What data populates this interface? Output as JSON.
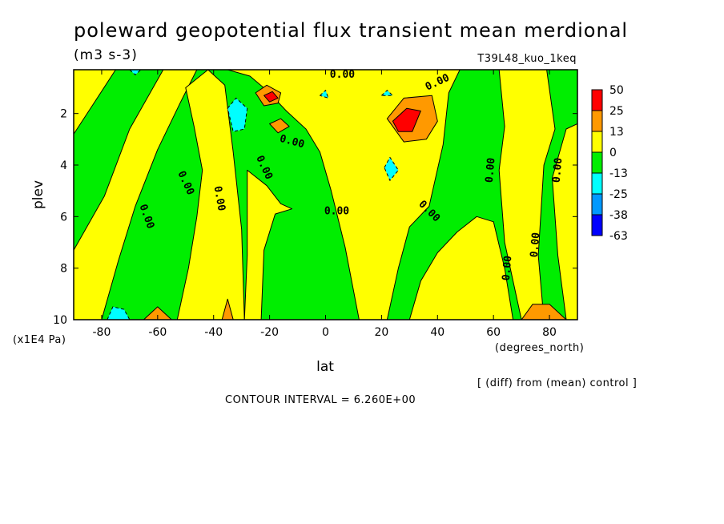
{
  "chart_data": {
    "type": "heatmap",
    "title": "poleward geopotential flux transient mean merdional",
    "units": "(m3 s-3)",
    "run_label": "T39L48_kuo_1keq",
    "xlabel": "lat",
    "ylabel": "plev",
    "x_units": "(degrees_north)",
    "y_units": "(x1E4 Pa)",
    "xlim": [
      -90,
      90
    ],
    "ylim": [
      10,
      0.3
    ],
    "x_ticks": [
      {
        "value": -80,
        "label": "-80"
      },
      {
        "value": -60,
        "label": "-60"
      },
      {
        "value": -40,
        "label": "-40"
      },
      {
        "value": -20,
        "label": "-20"
      },
      {
        "value": 0,
        "label": "0"
      },
      {
        "value": 20,
        "label": "20"
      },
      {
        "value": 40,
        "label": "40"
      },
      {
        "value": 60,
        "label": "60"
      },
      {
        "value": 80,
        "label": "80"
      }
    ],
    "y_ticks": [
      {
        "value": 2,
        "label": "2"
      },
      {
        "value": 4,
        "label": "4"
      },
      {
        "value": 6,
        "label": "6"
      },
      {
        "value": 8,
        "label": "8"
      },
      {
        "value": 10,
        "label": "10"
      }
    ],
    "contour_interval_text": "CONTOUR INTERVAL = 6.260E+00",
    "diff_note": "[ (diff) from (mean) control ]",
    "zero_label": "0.00",
    "colorbar": {
      "labels": [
        "50",
        "25",
        "13",
        "0",
        "-13",
        "-25",
        "-38",
        "-63"
      ],
      "colors": [
        "#ff0000",
        "#ff9900",
        "#ffff00",
        "#00ee00",
        "#00ffff",
        "#0099ff",
        "#0000ff"
      ]
    },
    "regions": [
      {
        "level": "positive",
        "points": [
          [
            -80,
            10
          ],
          [
            -74,
            7.7
          ],
          [
            -68,
            5.6
          ],
          [
            -60,
            3.4
          ],
          [
            -52,
            1.6
          ],
          [
            -46,
            0.3
          ],
          [
            -58,
            0.3
          ],
          [
            -70,
            2.6
          ],
          [
            -79,
            5.2
          ],
          [
            -90,
            7.3
          ],
          [
            -90,
            10
          ]
        ]
      },
      {
        "level": "positive",
        "points": [
          [
            -53,
            10
          ],
          [
            -49,
            8
          ],
          [
            -46,
            6
          ],
          [
            -44,
            4.2
          ],
          [
            -47,
            2.5
          ],
          [
            -50,
            1
          ],
          [
            -42,
            0.3
          ],
          [
            -36,
            0.9
          ],
          [
            -33,
            3.5
          ],
          [
            -30,
            6.5
          ],
          [
            -29,
            10
          ]
        ]
      },
      {
        "level": "positive",
        "points": [
          [
            -90,
            0.3
          ],
          [
            -75,
            0.3
          ],
          [
            -81,
            1.3
          ],
          [
            -90,
            2.8
          ]
        ]
      },
      {
        "level": "positive",
        "points": [
          [
            -35,
            0.3
          ],
          [
            -27,
            0.55
          ],
          [
            -21,
            1.1
          ],
          [
            -14,
            1.9
          ],
          [
            -7,
            2.6
          ],
          [
            -2,
            3.5
          ],
          [
            2,
            5
          ],
          [
            7,
            7.2
          ],
          [
            12,
            10
          ],
          [
            22,
            10
          ],
          [
            26,
            8
          ],
          [
            30,
            6.4
          ],
          [
            37,
            5.6
          ],
          [
            42,
            3.2
          ],
          [
            44,
            1.2
          ],
          [
            48,
            0.3
          ]
        ]
      },
      {
        "level": "positive",
        "points": [
          [
            -28,
            4.2
          ],
          [
            -21,
            4.8
          ],
          [
            -16,
            5.5
          ],
          [
            -12,
            5.7
          ],
          [
            -18,
            5.9
          ],
          [
            -22,
            7.3
          ],
          [
            -23,
            10
          ],
          [
            -29,
            10
          ],
          [
            -28,
            7.5
          ]
        ]
      },
      {
        "level": "positive",
        "points": [
          [
            30,
            10
          ],
          [
            34,
            8.5
          ],
          [
            40,
            7.4
          ],
          [
            47,
            6.6
          ],
          [
            54,
            6
          ],
          [
            60,
            6.2
          ],
          [
            64,
            8
          ],
          [
            67,
            10
          ]
        ]
      },
      {
        "level": "positive",
        "points": [
          [
            62,
            0.3
          ],
          [
            64,
            2.5
          ],
          [
            62,
            4.2
          ],
          [
            64,
            7
          ],
          [
            70,
            10
          ],
          [
            78,
            10
          ],
          [
            76,
            7.5
          ],
          [
            78,
            4
          ],
          [
            82,
            2.6
          ],
          [
            79,
            0.3
          ]
        ]
      },
      {
        "level": "positive",
        "points": [
          [
            81,
            4.5
          ],
          [
            86,
            2.6
          ],
          [
            90,
            2.4
          ],
          [
            90,
            10
          ],
          [
            86,
            10
          ],
          [
            83,
            7.5
          ]
        ]
      },
      {
        "level": "lev1",
        "points": [
          [
            -25,
            1.2
          ],
          [
            -21,
            0.9
          ],
          [
            -16,
            1.2
          ],
          [
            -17,
            1.6
          ],
          [
            -22,
            1.7
          ]
        ]
      },
      {
        "level": "lev2",
        "points": [
          [
            -22,
            1.3
          ],
          [
            -19,
            1.15
          ],
          [
            -17,
            1.4
          ],
          [
            -20,
            1.55
          ]
        ]
      },
      {
        "level": "lev1",
        "points": [
          [
            -20,
            2.4
          ],
          [
            -16,
            2.2
          ],
          [
            -13,
            2.5
          ],
          [
            -17,
            2.75
          ]
        ]
      },
      {
        "level": "lev1",
        "points": [
          [
            22,
            2.2
          ],
          [
            28,
            1.4
          ],
          [
            38,
            1.3
          ],
          [
            40,
            2.3
          ],
          [
            36,
            3
          ],
          [
            28,
            3.1
          ]
        ]
      },
      {
        "level": "lev2",
        "points": [
          [
            24,
            2.3
          ],
          [
            29,
            1.8
          ],
          [
            34,
            1.9
          ],
          [
            31,
            2.7
          ],
          [
            26,
            2.7
          ]
        ]
      },
      {
        "level": "lev1",
        "points": [
          [
            -37,
            10
          ],
          [
            -35,
            9.2
          ],
          [
            -33,
            10
          ]
        ]
      },
      {
        "level": "lev1",
        "points": [
          [
            -65,
            10
          ],
          [
            -60,
            9.5
          ],
          [
            -55,
            10
          ]
        ]
      },
      {
        "level": "lev1",
        "points": [
          [
            70,
            10
          ],
          [
            74,
            9.4
          ],
          [
            80,
            9.4
          ],
          [
            86,
            10
          ]
        ]
      },
      {
        "level": "neg1",
        "points": [
          [
            -35,
            1.8
          ],
          [
            -32,
            1.4
          ],
          [
            -28,
            1.8
          ],
          [
            -29,
            2.6
          ],
          [
            -33,
            2.7
          ]
        ]
      },
      {
        "level": "neg1",
        "points": [
          [
            21,
            4.1
          ],
          [
            23,
            3.7
          ],
          [
            26,
            4.2
          ],
          [
            23,
            4.6
          ]
        ]
      },
      {
        "level": "neg1",
        "points": [
          [
            -78,
            10
          ],
          [
            -76,
            9.5
          ],
          [
            -72,
            9.6
          ],
          [
            -70,
            10
          ]
        ]
      },
      {
        "level": "neg1",
        "points": [
          [
            -70,
            0.3
          ],
          [
            -68,
            0.5
          ],
          [
            -66,
            0.3
          ]
        ]
      },
      {
        "level": "neg1",
        "points": [
          [
            -2,
            1.3
          ],
          [
            0,
            1.1
          ],
          [
            1,
            1.4
          ]
        ]
      },
      {
        "level": "neg1",
        "points": [
          [
            20,
            1.3
          ],
          [
            22,
            1.1
          ],
          [
            24,
            1.3
          ]
        ]
      }
    ],
    "zero_labels": [
      {
        "x": 6,
        "y": 0.5,
        "rot": 0
      },
      {
        "x": 40,
        "y": 0.8,
        "rot": -25
      },
      {
        "x": -12,
        "y": 3.1,
        "rot": 15
      },
      {
        "x": -22,
        "y": 4.1,
        "rot": 65
      },
      {
        "x": -50,
        "y": 4.7,
        "rot": 65
      },
      {
        "x": -38,
        "y": 5.3,
        "rot": 80
      },
      {
        "x": -64,
        "y": 6.0,
        "rot": 70
      },
      {
        "x": 4,
        "y": 5.8,
        "rot": 0
      },
      {
        "x": 37,
        "y": 5.8,
        "rot": 45
      },
      {
        "x": 59,
        "y": 4.2,
        "rot": -85
      },
      {
        "x": 83,
        "y": 4.2,
        "rot": -85
      },
      {
        "x": 75,
        "y": 7.1,
        "rot": -85
      },
      {
        "x": 65,
        "y": 8.0,
        "rot": -85
      }
    ]
  }
}
